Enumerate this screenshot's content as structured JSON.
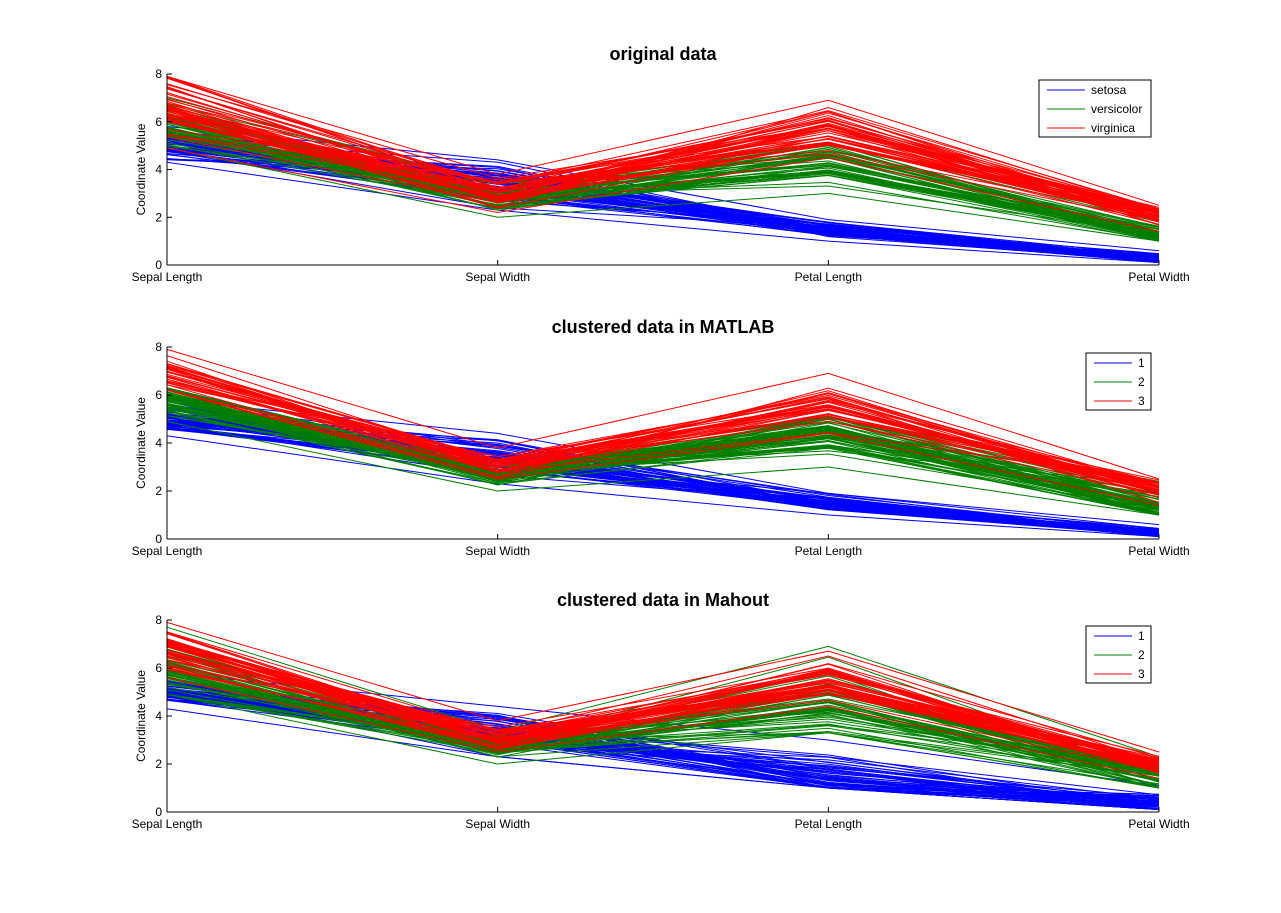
{
  "figure": {
    "background": "#ffffff"
  },
  "colors": {
    "blue": "#0000ff",
    "green": "#007f00",
    "red": "#ff0000",
    "axis": "#000000"
  },
  "chart_data": [
    {
      "type": "line",
      "subtype": "parallel-coordinates",
      "title": "original data",
      "categories": [
        "Sepal Length",
        "Sepal Width",
        "Petal Length",
        "Petal Width"
      ],
      "xlabel": "",
      "ylabel": "Coordinate Value",
      "ylim": [
        0,
        8
      ],
      "yticks": [
        0,
        2,
        4,
        6,
        8
      ],
      "legend": {
        "position": "top-right",
        "entries": [
          "setosa",
          "versicolor",
          "virginica"
        ]
      },
      "series": [
        {
          "name": "setosa",
          "color": "#0000ff",
          "count": 50,
          "min": [
            4.3,
            2.3,
            1.0,
            0.1
          ],
          "max": [
            5.8,
            4.4,
            1.9,
            0.6
          ],
          "mean": [
            5.0,
            3.4,
            1.5,
            0.25
          ]
        },
        {
          "name": "versicolor",
          "color": "#007f00",
          "count": 50,
          "min": [
            4.9,
            2.0,
            3.0,
            1.0
          ],
          "max": [
            7.0,
            3.4,
            5.1,
            1.8
          ],
          "mean": [
            5.9,
            2.8,
            4.3,
            1.3
          ]
        },
        {
          "name": "virginica",
          "color": "#ff0000",
          "count": 50,
          "min": [
            4.9,
            2.2,
            4.5,
            1.4
          ],
          "max": [
            7.9,
            3.8,
            6.9,
            2.5
          ],
          "mean": [
            6.6,
            3.0,
            5.6,
            2.0
          ]
        }
      ]
    },
    {
      "type": "line",
      "subtype": "parallel-coordinates",
      "title": "clustered data in MATLAB",
      "categories": [
        "Sepal Length",
        "Sepal Width",
        "Petal Length",
        "Petal Width"
      ],
      "xlabel": "",
      "ylabel": "Coordinate Value",
      "ylim": [
        0,
        8
      ],
      "yticks": [
        0,
        2,
        4,
        6,
        8
      ],
      "legend": {
        "position": "top-right",
        "entries": [
          "1",
          "2",
          "3"
        ]
      },
      "series": [
        {
          "name": "1",
          "color": "#0000ff",
          "count": 50,
          "min": [
            4.3,
            2.3,
            1.0,
            0.1
          ],
          "max": [
            5.8,
            4.4,
            1.9,
            0.6
          ],
          "mean": [
            5.0,
            3.4,
            1.5,
            0.25
          ]
        },
        {
          "name": "2",
          "color": "#007f00",
          "count": 62,
          "min": [
            4.9,
            2.0,
            3.0,
            1.0
          ],
          "max": [
            6.3,
            3.0,
            5.1,
            2.4
          ],
          "mean": [
            5.9,
            2.7,
            4.4,
            1.4
          ]
        },
        {
          "name": "3",
          "color": "#ff0000",
          "count": 38,
          "min": [
            6.2,
            2.5,
            4.4,
            1.4
          ],
          "max": [
            7.9,
            3.8,
            6.9,
            2.5
          ],
          "mean": [
            6.85,
            3.1,
            5.7,
            2.05
          ]
        }
      ]
    },
    {
      "type": "line",
      "subtype": "parallel-coordinates",
      "title": "clustered data in Mahout",
      "categories": [
        "Sepal Length",
        "Sepal Width",
        "Petal Length",
        "Petal Width"
      ],
      "xlabel": "",
      "ylabel": "Coordinate Value",
      "ylim": [
        0,
        8
      ],
      "yticks": [
        0,
        2,
        4,
        6,
        8
      ],
      "legend": {
        "position": "top-right",
        "entries": [
          "1",
          "2",
          "3"
        ]
      },
      "series": [
        {
          "name": "1",
          "color": "#0000ff",
          "count": 53,
          "min": [
            4.3,
            2.3,
            1.0,
            0.1
          ],
          "max": [
            5.8,
            4.4,
            3.0,
            1.1
          ],
          "mean": [
            5.0,
            3.3,
            1.6,
            0.3
          ]
        },
        {
          "name": "2",
          "color": "#007f00",
          "count": 50,
          "min": [
            4.9,
            2.0,
            3.3,
            1.0
          ],
          "max": [
            7.7,
            3.4,
            6.9,
            2.3
          ],
          "mean": [
            5.9,
            2.7,
            4.5,
            1.4
          ]
        },
        {
          "name": "3",
          "color": "#ff0000",
          "count": 47,
          "min": [
            5.6,
            2.5,
            4.4,
            1.4
          ],
          "max": [
            7.9,
            3.8,
            6.7,
            2.5
          ],
          "mean": [
            6.7,
            3.0,
            5.5,
            2.0
          ]
        }
      ]
    }
  ]
}
